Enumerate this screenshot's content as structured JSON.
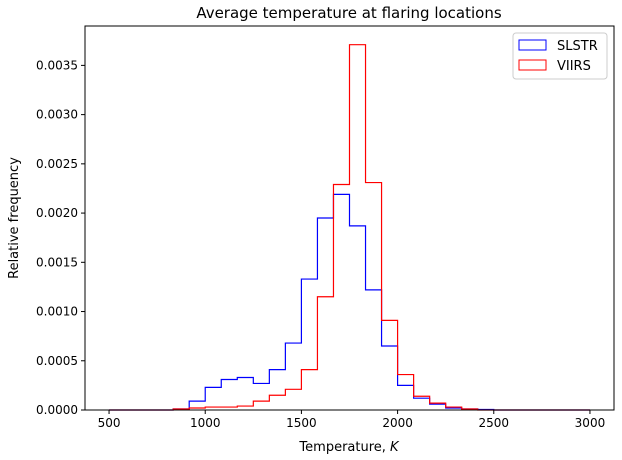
{
  "chart_data": {
    "type": "histogram-step",
    "title": "Average temperature at flaring locations",
    "xlabel": "Temperature, ",
    "xlabel_italic": "K",
    "ylabel": "Relative frequency",
    "xlim": [
      375,
      3125
    ],
    "ylim": [
      0,
      0.0039
    ],
    "bin_start": 500,
    "bin_end": 3000,
    "bin_count": 30,
    "xticks": [
      500,
      1000,
      1500,
      2000,
      2500,
      3000
    ],
    "xtick_labels": [
      "500",
      "1000",
      "1500",
      "2000",
      "2500",
      "3000"
    ],
    "yticks": [
      0,
      0.0005,
      0.001,
      0.0015,
      0.002,
      0.0025,
      0.003,
      0.0035
    ],
    "ytick_labels": [
      "0.0000",
      "0.0005",
      "0.0010",
      "0.0015",
      "0.0020",
      "0.0025",
      "0.0030",
      "0.0035"
    ],
    "legend_position": "top-right",
    "series": [
      {
        "name": "SLSTR",
        "color": "#0000ff",
        "values": [
          0,
          0,
          0,
          0,
          1e-05,
          9e-05,
          0.00023,
          0.00031,
          0.00033,
          0.00027,
          0.00041,
          0.00068,
          0.00133,
          0.00195,
          0.00219,
          0.00187,
          0.00122,
          0.00065,
          0.00025,
          0.00012,
          6e-05,
          2e-05,
          1e-05,
          5e-06,
          0,
          0,
          0,
          0,
          0,
          0
        ]
      },
      {
        "name": "VIIRS",
        "color": "#ff0000",
        "values": [
          0,
          0,
          0,
          0,
          1e-05,
          2e-05,
          3e-05,
          3e-05,
          4e-05,
          9e-05,
          0.00015,
          0.00021,
          0.00041,
          0.00115,
          0.00229,
          0.00371,
          0.00231,
          0.00091,
          0.00036,
          0.00014,
          7e-05,
          3e-05,
          1e-05,
          0,
          0,
          0,
          0,
          0,
          0,
          0
        ]
      }
    ]
  }
}
